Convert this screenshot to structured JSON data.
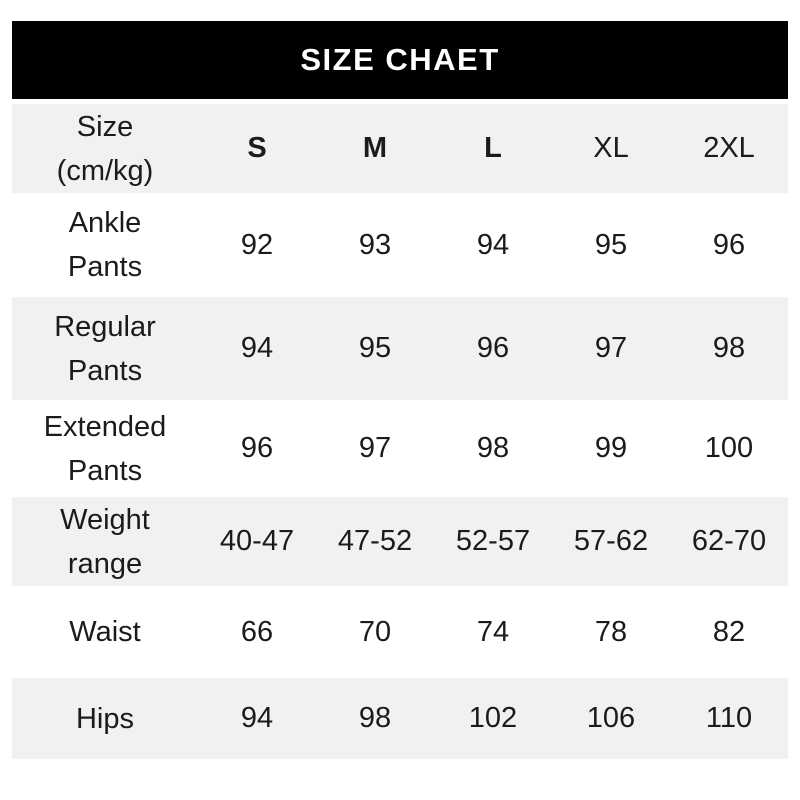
{
  "title": "SIZE CHAET",
  "colors": {
    "title_bar_bg": "#000000",
    "title_text": "#ffffff",
    "alt_row_bg": "#f1f1f1",
    "body_text": "#1b1b1b",
    "page_bg": "#ffffff"
  },
  "labels": {
    "corner": [
      "Size",
      "(cm/kg)"
    ],
    "rows": [
      [
        "Ankle",
        "Pants"
      ],
      [
        "Regular",
        "Pants"
      ],
      [
        "Extended",
        "Pants"
      ],
      [
        "Weight",
        "range"
      ],
      [
        "Waist"
      ],
      [
        "Hips"
      ]
    ]
  },
  "chart_data": {
    "type": "table",
    "title": "SIZE CHAET",
    "columns": [
      "Size (cm/kg)",
      "S",
      "M",
      "L",
      "XL",
      "2XL"
    ],
    "rows": [
      [
        "Ankle Pants",
        "92",
        "93",
        "94",
        "95",
        "96"
      ],
      [
        "Regular Pants",
        "94",
        "95",
        "96",
        "97",
        "98"
      ],
      [
        "Extended Pants",
        "96",
        "97",
        "98",
        "99",
        "100"
      ],
      [
        "Weight range",
        "40-47",
        "47-52",
        "52-57",
        "57-62",
        "62-70"
      ],
      [
        "Waist",
        "66",
        "70",
        "74",
        "78",
        "82"
      ],
      [
        "Hips",
        "94",
        "98",
        "102",
        "106",
        "110"
      ]
    ],
    "layout_hints": {
      "alternating_row_shading": true,
      "bold_column_headers": [
        "S",
        "M",
        "L"
      ],
      "header_bar": "black with white centered title"
    }
  }
}
